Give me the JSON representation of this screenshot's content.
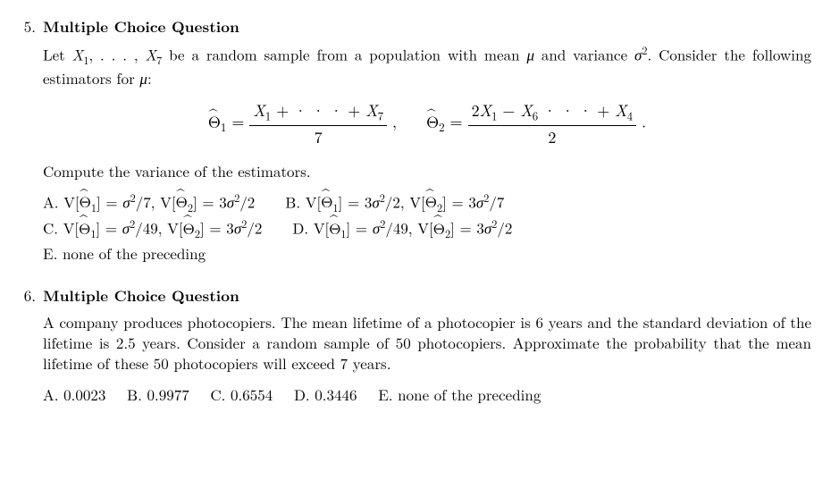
{
  "q5": {
    "number": "5.",
    "title": "Multiple Choice Question",
    "intro_html": "Let <span class=\"it\">X</span><span class=\"sub\">1</span>, . . . , <span class=\"it\">X</span><span class=\"sub\">7</span> be a random sample from a population with mean <span class=\"it\">μ</span> and variance <span class=\"it\">σ</span><span class=\"sup\">2</span>. Consider the following estimators for <span class=\"it\">μ</span>:",
    "formula_html": "<span class=\"hat\">Θ</span><span class=\"sub\">1</span> = <span class=\"frac\"><span class=\"num\"><span class=\"it\">X</span><span class=\"sub\">1</span> + · · · + <span class=\"it\">X</span><span class=\"sub\">7</span></span><span class=\"den\">7</span></span> ,&nbsp;&nbsp;&nbsp; <span class=\"hat\">Θ</span><span class=\"sub\">2</span> = <span class=\"frac\"><span class=\"num\">2<span class=\"it\">X</span><span class=\"sub\">1</span> − <span class=\"it\">X</span><span class=\"sub\">6</span> · · · + <span class=\"it\">X</span><span class=\"sub\">4</span></span><span class=\"den\">2</span></span> .",
    "compute": "Compute the variance of the estimators.",
    "choices": {
      "line1_html": "A. V[<span class=\"hat\">Θ</span><span class=\"sub\">1</span>] = <span class=\"it\">σ</span><span class=\"sup\">2</span>/7, V[<span class=\"hat\">Θ</span><span class=\"sub\">2</span>] = 3<span class=\"it\">σ</span><span class=\"sup\">2</span>/2&nbsp;&nbsp;&nbsp;&nbsp;B. V[<span class=\"hat\">Θ</span><span class=\"sub\">1</span>] = 3<span class=\"it\">σ</span><span class=\"sup\">2</span>/2, V[<span class=\"hat\">Θ</span><span class=\"sub\">2</span>] = 3<span class=\"it\">σ</span><span class=\"sup\">2</span>/7",
      "line2_html": "C. V[<span class=\"hat\">Θ</span><span class=\"sub\">1</span>] = <span class=\"it\">σ</span><span class=\"sup\">2</span>/49, V[<span class=\"hat\">Θ</span><span class=\"sub\">2</span>] = 3<span class=\"it\">σ</span><span class=\"sup\">2</span>/2&nbsp;&nbsp;&nbsp;&nbsp;D. V[<span class=\"hat\">Θ</span><span class=\"sub\">1</span>] = <span class=\"it\">σ</span><span class=\"sup\">2</span>/49, V[<span class=\"hat\">Θ</span><span class=\"sub\">2</span>] = 3<span class=\"it\">σ</span><span class=\"sup\">2</span>/2",
      "line3": "E. none of the preceding"
    }
  },
  "q6": {
    "number": "6.",
    "title": "Multiple Choice Question",
    "intro": "A company produces photocopiers.  The mean lifetime of a photocopier is 6 years and the standard deviation of the lifetime is 2.5 years.  Consider a random sample of 50 photocopiers.  Approximate the probability that the mean lifetime of these 50 photocopiers will exceed 7 years.",
    "choices": {
      "A": "A. 0.0023",
      "B": "B. 0.9977",
      "C": "C. 0.6554",
      "D": "D. 0.3446",
      "E": "E. none of the preceding"
    }
  }
}
